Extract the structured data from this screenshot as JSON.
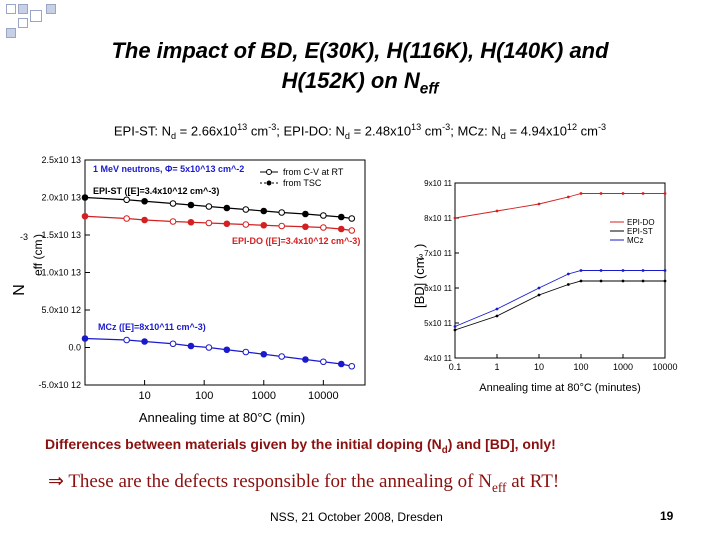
{
  "slide": {
    "title_line1": "The impact of BD, E(30K), H(116K), H(140K) and",
    "title_line2_prefix": "H(152K) on N",
    "title_line2_sub": "eff",
    "subtitle_parts": [
      "EPI-ST: N",
      "d",
      " = 2.66x10",
      "13",
      " cm",
      "-3",
      "; EPI-DO: N",
      "d",
      " = 2.48x10",
      "13",
      " cm",
      "-3",
      "; MCz: N",
      "d",
      " = 4.94x10",
      "12",
      " cm",
      "-3"
    ],
    "diff_note_parts": [
      "Differences between materials given by the initial doping (N",
      "d",
      ") and [BD], only!"
    ],
    "conclusion_parts": [
      "⇒ These are the defects responsible for the annealing of N",
      "eff",
      " at RT!"
    ],
    "footer": "NSS, 21 October 2008, Dresden",
    "page_number": "19",
    "colors": {
      "title": "#000000",
      "accent": "#8b1010",
      "red": "#d42020",
      "blue": "#1a1acd",
      "black": "#000000"
    }
  },
  "chart_data": [
    {
      "type": "scatter",
      "xlabel": "Annealing time at 80°C (min)",
      "ylabel": "N_eff (cm^-3)",
      "x_scale": "log",
      "xlim": [
        1,
        50000
      ],
      "ylim": [
        -5000000000000.0,
        25000000000000.0
      ],
      "x_ticks": [
        10,
        100,
        1000,
        10000
      ],
      "x_tick_labels": [
        "10",
        "100",
        "1000",
        "10000"
      ],
      "y_ticks": [
        -5000000000000.0,
        0,
        5000000000000.0,
        10000000000000.0,
        15000000000000.0,
        20000000000000.0,
        25000000000000.0
      ],
      "y_tick_labels": [
        "-5.0x10^12",
        "0.0",
        "5.0x10^12",
        "1.0x10^13",
        "1.5x10^13",
        "2.0x10^13",
        "2.5x10^13"
      ],
      "annotations": [
        "1 MeV neutrons, Φ= 5x10^13 cm^-2",
        "EPI-ST ([E]=3.4x10^12 cm^-3)",
        "EPI-DO ([E]=3.4x10^12 cm^-3)",
        "MCz ([E]=8x10^11 cm^-3)"
      ],
      "legend": [
        "from C-V at RT",
        "from TSC"
      ],
      "legend_position": "top-right",
      "series": [
        {
          "color": "#000000",
          "marker": "circle",
          "x": [
            1,
            5,
            10,
            30,
            60,
            120,
            240,
            500,
            1000,
            2000,
            5000,
            10000,
            20000,
            30000
          ],
          "y": [
            20000000000000.0,
            19700000000000.0,
            19500000000000.0,
            19200000000000.0,
            19000000000000.0,
            18800000000000.0,
            18600000000000.0,
            18400000000000.0,
            18200000000000.0,
            18000000000000.0,
            17800000000000.0,
            17600000000000.0,
            17400000000000.0,
            17200000000000.0
          ]
        },
        {
          "color": "#d42020",
          "marker": "circle",
          "x": [
            1,
            5,
            10,
            30,
            60,
            120,
            240,
            500,
            1000,
            2000,
            5000,
            10000,
            20000,
            30000
          ],
          "y": [
            17500000000000.0,
            17200000000000.0,
            17000000000000.0,
            16800000000000.0,
            16700000000000.0,
            16600000000000.0,
            16500000000000.0,
            16400000000000.0,
            16300000000000.0,
            16200000000000.0,
            16100000000000.0,
            16000000000000.0,
            15800000000000.0,
            15600000000000.0
          ]
        },
        {
          "color": "#1a1acd",
          "marker": "circle",
          "x": [
            1,
            5,
            10,
            30,
            60,
            120,
            240,
            500,
            1000,
            2000,
            5000,
            10000,
            20000,
            30000
          ],
          "y": [
            1200000000000.0,
            1000000000000.0,
            800000000000.0,
            500000000000.0,
            200000000000.0,
            0,
            -300000000000.0,
            -600000000000.0,
            -900000000000.0,
            -1200000000000.0,
            -1600000000000.0,
            -1900000000000.0,
            -2200000000000.0,
            -2500000000000.0
          ]
        }
      ]
    },
    {
      "type": "line",
      "xlabel": "Annealing time at 80°C (minutes)",
      "ylabel": "[BD] (cm^-3)",
      "x_scale": "log",
      "xlim": [
        0.1,
        10000
      ],
      "ylim": [
        400000000000.0,
        900000000000.0
      ],
      "x_ticks": [
        0.1,
        1,
        10,
        100,
        1000,
        10000
      ],
      "x_tick_labels": [
        "0.1",
        "1",
        "10",
        "100",
        "1000",
        "10000"
      ],
      "y_ticks": [
        400000000000.0,
        500000000000.0,
        600000000000.0,
        700000000000.0,
        800000000000.0,
        900000000000.0
      ],
      "y_tick_labels": [
        "4x10^11",
        "5x10^11",
        "6x10^11",
        "7x10^11",
        "8x10^11",
        "9x10^11"
      ],
      "legend_position": "right",
      "series": [
        {
          "name": "EPI-DO",
          "color": "#d42020",
          "x": [
            0.1,
            1,
            10,
            50,
            100,
            300,
            1000,
            3000,
            10000
          ],
          "y": [
            800000000000.0,
            820000000000.0,
            840000000000.0,
            860000000000.0,
            870000000000.0,
            870000000000.0,
            870000000000.0,
            870000000000.0,
            870000000000.0
          ]
        },
        {
          "name": "EPI-ST",
          "color": "#000000",
          "x": [
            0.1,
            1,
            10,
            50,
            100,
            300,
            1000,
            3000,
            10000
          ],
          "y": [
            480000000000.0,
            520000000000.0,
            580000000000.0,
            610000000000.0,
            620000000000.0,
            620000000000.0,
            620000000000.0,
            620000000000.0,
            620000000000.0
          ]
        },
        {
          "name": "MCz",
          "color": "#1a1acd",
          "x": [
            0.1,
            1,
            10,
            50,
            100,
            300,
            1000,
            3000,
            10000
          ],
          "y": [
            490000000000.0,
            540000000000.0,
            600000000000.0,
            640000000000.0,
            650000000000.0,
            650000000000.0,
            650000000000.0,
            650000000000.0,
            650000000000.0
          ]
        }
      ]
    }
  ]
}
